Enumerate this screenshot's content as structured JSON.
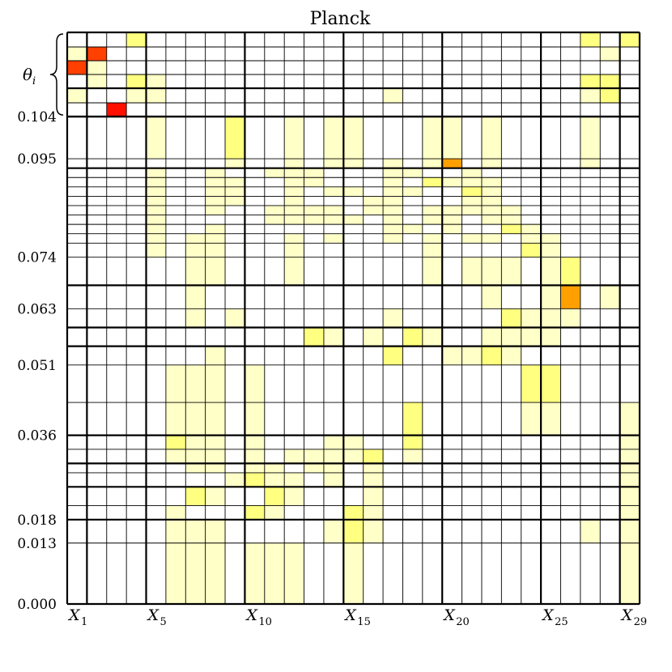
{
  "chart_data": {
    "type": "heatmap",
    "title": "Planck",
    "xlabel": "",
    "ylabel": "",
    "x_tick_labels": [
      {
        "col": 1,
        "base": "X",
        "sub": "1"
      },
      {
        "col": 5,
        "base": "X",
        "sub": "5"
      },
      {
        "col": 10,
        "base": "X",
        "sub": "10"
      },
      {
        "col": 15,
        "base": "X",
        "sub": "15"
      },
      {
        "col": 20,
        "base": "X",
        "sub": "20"
      },
      {
        "col": 25,
        "base": "X",
        "sub": "25"
      },
      {
        "col": 29,
        "base": "X",
        "sub": "29"
      }
    ],
    "n_columns": 29,
    "theta_label": {
      "base": "θ",
      "sub": "i"
    },
    "theta_rows": 5,
    "y_ticks": [
      0.104,
      0.095,
      0.074,
      0.063,
      0.051,
      0.036,
      0.018,
      0.013,
      0.0
    ],
    "y_tick_labels": [
      "0.104",
      "0.095",
      "0.074",
      "0.063",
      "0.051",
      "0.036",
      "0.018",
      "0.013",
      "0.000"
    ],
    "y_range": [
      0.0,
      0.104
    ],
    "y_boundaries": [
      0.104,
      0.095,
      0.093,
      0.091,
      0.089,
      0.087,
      0.085,
      0.083,
      0.081,
      0.079,
      0.077,
      0.074,
      0.068,
      0.063,
      0.059,
      0.055,
      0.051,
      0.043,
      0.036,
      0.033,
      0.03,
      0.028,
      0.025,
      0.021,
      0.018,
      0.013,
      0.0
    ],
    "bold_boundaries": [
      0.104,
      0.093,
      0.068,
      0.059,
      0.055,
      0.036,
      0.03,
      0.025,
      0.018,
      0.0
    ],
    "color_scale": {
      "1": "#ffffc8",
      "2": "#ffff80",
      "3": "#ffa000",
      "4": "#ff4000",
      "5": "#ff1000"
    },
    "theta_cells": [
      [
        1,
        4,
        2
      ],
      [
        1,
        27,
        2
      ],
      [
        1,
        29,
        2
      ],
      [
        2,
        1,
        1
      ],
      [
        2,
        2,
        4
      ],
      [
        2,
        28,
        1
      ],
      [
        3,
        1,
        4
      ],
      [
        3,
        2,
        1
      ],
      [
        4,
        2,
        1
      ],
      [
        4,
        4,
        2
      ],
      [
        4,
        5,
        1
      ],
      [
        4,
        27,
        2
      ],
      [
        4,
        28,
        2
      ],
      [
        5,
        1,
        1
      ],
      [
        5,
        4,
        1
      ],
      [
        5,
        5,
        1
      ],
      [
        5,
        17,
        1
      ],
      [
        5,
        27,
        1
      ],
      [
        5,
        28,
        2
      ]
    ],
    "theta_red_cell": {
      "col": 3,
      "level": 5
    },
    "band_cells": [
      [
        0.104,
        0.095,
        5,
        1
      ],
      [
        0.104,
        0.095,
        9,
        2
      ],
      [
        0.104,
        0.095,
        12,
        1
      ],
      [
        0.104,
        0.095,
        14,
        1
      ],
      [
        0.104,
        0.095,
        15,
        1
      ],
      [
        0.104,
        0.095,
        19,
        1
      ],
      [
        0.104,
        0.095,
        20,
        1
      ],
      [
        0.104,
        0.095,
        22,
        1
      ],
      [
        0.104,
        0.095,
        27,
        1
      ],
      [
        0.095,
        0.093,
        9,
        1
      ],
      [
        0.095,
        0.093,
        12,
        1
      ],
      [
        0.095,
        0.093,
        14,
        1
      ],
      [
        0.095,
        0.093,
        15,
        1
      ],
      [
        0.095,
        0.093,
        17,
        1
      ],
      [
        0.095,
        0.093,
        19,
        1
      ],
      [
        0.095,
        0.093,
        20,
        3
      ],
      [
        0.095,
        0.093,
        22,
        1
      ],
      [
        0.095,
        0.093,
        27,
        1
      ],
      [
        0.093,
        0.091,
        5,
        1
      ],
      [
        0.093,
        0.091,
        8,
        1
      ],
      [
        0.093,
        0.091,
        11,
        1
      ],
      [
        0.093,
        0.091,
        12,
        1
      ],
      [
        0.093,
        0.091,
        13,
        1
      ],
      [
        0.093,
        0.091,
        17,
        1
      ],
      [
        0.093,
        0.091,
        18,
        1
      ],
      [
        0.093,
        0.091,
        21,
        1
      ],
      [
        0.091,
        0.089,
        5,
        1
      ],
      [
        0.091,
        0.089,
        8,
        1
      ],
      [
        0.091,
        0.089,
        9,
        1
      ],
      [
        0.091,
        0.089,
        12,
        1
      ],
      [
        0.091,
        0.089,
        13,
        1
      ],
      [
        0.091,
        0.089,
        17,
        1
      ],
      [
        0.091,
        0.089,
        19,
        2
      ],
      [
        0.091,
        0.089,
        20,
        1
      ],
      [
        0.091,
        0.089,
        21,
        1
      ],
      [
        0.091,
        0.089,
        22,
        1
      ],
      [
        0.089,
        0.087,
        5,
        1
      ],
      [
        0.089,
        0.087,
        8,
        1
      ],
      [
        0.089,
        0.087,
        9,
        1
      ],
      [
        0.089,
        0.087,
        12,
        1
      ],
      [
        0.089,
        0.087,
        14,
        1
      ],
      [
        0.089,
        0.087,
        15,
        1
      ],
      [
        0.089,
        0.087,
        17,
        1
      ],
      [
        0.089,
        0.087,
        18,
        1
      ],
      [
        0.089,
        0.087,
        21,
        2
      ],
      [
        0.089,
        0.087,
        22,
        1
      ],
      [
        0.087,
        0.085,
        5,
        1
      ],
      [
        0.087,
        0.085,
        8,
        1
      ],
      [
        0.087,
        0.085,
        9,
        1
      ],
      [
        0.087,
        0.085,
        12,
        1
      ],
      [
        0.087,
        0.085,
        16,
        1
      ],
      [
        0.087,
        0.085,
        17,
        1
      ],
      [
        0.087,
        0.085,
        21,
        1
      ],
      [
        0.087,
        0.085,
        22,
        1
      ],
      [
        0.085,
        0.083,
        5,
        1
      ],
      [
        0.085,
        0.083,
        8,
        1
      ],
      [
        0.085,
        0.083,
        11,
        1
      ],
      [
        0.085,
        0.083,
        12,
        1
      ],
      [
        0.085,
        0.083,
        13,
        1
      ],
      [
        0.085,
        0.083,
        14,
        1
      ],
      [
        0.085,
        0.083,
        16,
        1
      ],
      [
        0.085,
        0.083,
        17,
        1
      ],
      [
        0.085,
        0.083,
        19,
        1
      ],
      [
        0.085,
        0.083,
        20,
        1
      ],
      [
        0.085,
        0.083,
        21,
        1
      ],
      [
        0.085,
        0.083,
        22,
        1
      ],
      [
        0.085,
        0.083,
        23,
        1
      ],
      [
        0.083,
        0.081,
        5,
        1
      ],
      [
        0.083,
        0.081,
        11,
        1
      ],
      [
        0.083,
        0.081,
        12,
        1
      ],
      [
        0.083,
        0.081,
        13,
        1
      ],
      [
        0.083,
        0.081,
        14,
        1
      ],
      [
        0.083,
        0.081,
        15,
        1
      ],
      [
        0.083,
        0.081,
        17,
        1
      ],
      [
        0.083,
        0.081,
        19,
        1
      ],
      [
        0.083,
        0.081,
        20,
        1
      ],
      [
        0.083,
        0.081,
        22,
        1
      ],
      [
        0.083,
        0.081,
        23,
        1
      ],
      [
        0.081,
        0.079,
        5,
        1
      ],
      [
        0.081,
        0.079,
        8,
        1
      ],
      [
        0.081,
        0.079,
        17,
        1
      ],
      [
        0.081,
        0.079,
        18,
        1
      ],
      [
        0.081,
        0.079,
        20,
        1
      ],
      [
        0.081,
        0.079,
        23,
        2
      ],
      [
        0.081,
        0.079,
        24,
        1
      ],
      [
        0.079,
        0.077,
        5,
        1
      ],
      [
        0.079,
        0.077,
        7,
        1
      ],
      [
        0.079,
        0.077,
        8,
        1
      ],
      [
        0.079,
        0.077,
        12,
        1
      ],
      [
        0.079,
        0.077,
        14,
        1
      ],
      [
        0.079,
        0.077,
        17,
        1
      ],
      [
        0.079,
        0.077,
        19,
        1
      ],
      [
        0.079,
        0.077,
        21,
        1
      ],
      [
        0.079,
        0.077,
        22,
        1
      ],
      [
        0.079,
        0.077,
        24,
        1
      ],
      [
        0.079,
        0.077,
        25,
        1
      ],
      [
        0.077,
        0.074,
        5,
        1
      ],
      [
        0.077,
        0.074,
        7,
        1
      ],
      [
        0.077,
        0.074,
        8,
        1
      ],
      [
        0.077,
        0.074,
        12,
        1
      ],
      [
        0.077,
        0.074,
        19,
        1
      ],
      [
        0.077,
        0.074,
        24,
        2
      ],
      [
        0.077,
        0.074,
        25,
        1
      ],
      [
        0.074,
        0.068,
        7,
        1
      ],
      [
        0.074,
        0.068,
        8,
        1
      ],
      [
        0.074,
        0.068,
        12,
        1
      ],
      [
        0.074,
        0.068,
        19,
        1
      ],
      [
        0.074,
        0.068,
        21,
        1
      ],
      [
        0.074,
        0.068,
        22,
        1
      ],
      [
        0.074,
        0.068,
        23,
        1
      ],
      [
        0.074,
        0.068,
        25,
        1
      ],
      [
        0.074,
        0.068,
        26,
        2
      ],
      [
        0.068,
        0.063,
        7,
        1
      ],
      [
        0.068,
        0.063,
        22,
        1
      ],
      [
        0.068,
        0.063,
        25,
        1
      ],
      [
        0.068,
        0.063,
        26,
        3
      ],
      [
        0.068,
        0.063,
        28,
        1
      ],
      [
        0.063,
        0.059,
        7,
        1
      ],
      [
        0.063,
        0.059,
        9,
        1
      ],
      [
        0.063,
        0.059,
        17,
        1
      ],
      [
        0.063,
        0.059,
        23,
        2
      ],
      [
        0.063,
        0.059,
        24,
        1
      ],
      [
        0.063,
        0.059,
        25,
        1
      ],
      [
        0.063,
        0.059,
        26,
        1
      ],
      [
        0.059,
        0.055,
        13,
        2
      ],
      [
        0.059,
        0.055,
        14,
        1
      ],
      [
        0.059,
        0.055,
        16,
        1
      ],
      [
        0.059,
        0.055,
        18,
        2
      ],
      [
        0.059,
        0.055,
        19,
        1
      ],
      [
        0.059,
        0.055,
        22,
        1
      ],
      [
        0.059,
        0.055,
        23,
        1
      ],
      [
        0.059,
        0.055,
        24,
        1
      ],
      [
        0.059,
        0.055,
        25,
        1
      ],
      [
        0.055,
        0.051,
        8,
        1
      ],
      [
        0.055,
        0.051,
        17,
        2
      ],
      [
        0.055,
        0.051,
        20,
        1
      ],
      [
        0.055,
        0.051,
        21,
        1
      ],
      [
        0.055,
        0.051,
        22,
        2
      ],
      [
        0.055,
        0.051,
        23,
        1
      ],
      [
        0.051,
        0.043,
        6,
        1
      ],
      [
        0.051,
        0.043,
        7,
        1
      ],
      [
        0.051,
        0.043,
        8,
        1
      ],
      [
        0.051,
        0.043,
        10,
        1
      ],
      [
        0.051,
        0.043,
        24,
        2
      ],
      [
        0.051,
        0.043,
        25,
        2
      ],
      [
        0.043,
        0.036,
        6,
        1
      ],
      [
        0.043,
        0.036,
        7,
        1
      ],
      [
        0.043,
        0.036,
        8,
        1
      ],
      [
        0.043,
        0.036,
        10,
        1
      ],
      [
        0.043,
        0.036,
        18,
        2
      ],
      [
        0.043,
        0.036,
        24,
        1
      ],
      [
        0.043,
        0.036,
        25,
        1
      ],
      [
        0.043,
        0.036,
        29,
        1
      ],
      [
        0.036,
        0.033,
        6,
        2
      ],
      [
        0.036,
        0.033,
        7,
        1
      ],
      [
        0.036,
        0.033,
        8,
        1
      ],
      [
        0.036,
        0.033,
        10,
        1
      ],
      [
        0.036,
        0.033,
        14,
        1
      ],
      [
        0.036,
        0.033,
        15,
        1
      ],
      [
        0.036,
        0.033,
        18,
        2
      ],
      [
        0.036,
        0.033,
        29,
        1
      ],
      [
        0.033,
        0.03,
        6,
        1
      ],
      [
        0.033,
        0.03,
        7,
        1
      ],
      [
        0.033,
        0.03,
        8,
        1
      ],
      [
        0.033,
        0.03,
        10,
        1
      ],
      [
        0.033,
        0.03,
        12,
        1
      ],
      [
        0.033,
        0.03,
        13,
        1
      ],
      [
        0.033,
        0.03,
        14,
        1
      ],
      [
        0.033,
        0.03,
        15,
        1
      ],
      [
        0.033,
        0.03,
        16,
        2
      ],
      [
        0.033,
        0.03,
        18,
        1
      ],
      [
        0.033,
        0.03,
        29,
        1
      ],
      [
        0.03,
        0.028,
        7,
        1
      ],
      [
        0.03,
        0.028,
        8,
        1
      ],
      [
        0.03,
        0.028,
        10,
        1
      ],
      [
        0.03,
        0.028,
        11,
        1
      ],
      [
        0.03,
        0.028,
        13,
        1
      ],
      [
        0.03,
        0.028,
        14,
        1
      ],
      [
        0.03,
        0.028,
        16,
        1
      ],
      [
        0.03,
        0.028,
        29,
        1
      ],
      [
        0.028,
        0.025,
        9,
        1
      ],
      [
        0.028,
        0.025,
        10,
        2
      ],
      [
        0.028,
        0.025,
        11,
        1
      ],
      [
        0.028,
        0.025,
        12,
        1
      ],
      [
        0.028,
        0.025,
        14,
        1
      ],
      [
        0.028,
        0.025,
        16,
        1
      ],
      [
        0.028,
        0.025,
        29,
        1
      ],
      [
        0.025,
        0.021,
        7,
        2
      ],
      [
        0.025,
        0.021,
        8,
        1
      ],
      [
        0.025,
        0.021,
        11,
        2
      ],
      [
        0.025,
        0.021,
        12,
        1
      ],
      [
        0.025,
        0.021,
        16,
        1
      ],
      [
        0.025,
        0.021,
        29,
        1
      ],
      [
        0.021,
        0.018,
        6,
        1
      ],
      [
        0.021,
        0.018,
        10,
        2
      ],
      [
        0.021,
        0.018,
        11,
        1
      ],
      [
        0.021,
        0.018,
        15,
        2
      ],
      [
        0.021,
        0.018,
        16,
        1
      ],
      [
        0.021,
        0.018,
        29,
        1
      ],
      [
        0.018,
        0.013,
        6,
        1
      ],
      [
        0.018,
        0.013,
        7,
        1
      ],
      [
        0.018,
        0.013,
        8,
        1
      ],
      [
        0.018,
        0.013,
        14,
        1
      ],
      [
        0.018,
        0.013,
        15,
        2
      ],
      [
        0.018,
        0.013,
        16,
        1
      ],
      [
        0.018,
        0.013,
        27,
        1
      ],
      [
        0.018,
        0.013,
        29,
        1
      ],
      [
        0.013,
        0.0,
        6,
        1
      ],
      [
        0.013,
        0.0,
        7,
        1
      ],
      [
        0.013,
        0.0,
        8,
        1
      ],
      [
        0.013,
        0.0,
        10,
        1
      ],
      [
        0.013,
        0.0,
        11,
        1
      ],
      [
        0.013,
        0.0,
        12,
        1
      ],
      [
        0.013,
        0.0,
        15,
        1
      ],
      [
        0.013,
        0.0,
        29,
        1
      ]
    ],
    "grid": true,
    "legend": "none"
  }
}
